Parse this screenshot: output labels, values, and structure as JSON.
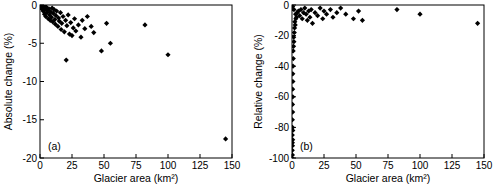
{
  "chart_data": [
    {
      "type": "scatter",
      "x_label": "Glacier area (km²)",
      "y_label": "Absolute change (%)",
      "annotation": "(a)",
      "marker": "diamond",
      "color": "#000000",
      "xlim": [
        0,
        150
      ],
      "xticks": [
        0,
        25,
        50,
        75,
        100,
        125,
        150
      ],
      "ylim": [
        -20,
        0
      ],
      "yticks": [
        0,
        -5,
        -10,
        -15,
        -20
      ],
      "x": [
        0.2,
        0.5,
        0.8,
        1,
        1.2,
        1.5,
        2,
        2.2,
        2.5,
        3,
        3.2,
        3.5,
        4,
        4.2,
        4.5,
        5,
        5.5,
        6,
        6.5,
        7,
        7.5,
        8,
        8.5,
        9,
        9.5,
        10,
        10.5,
        11,
        11.5,
        12,
        12.5,
        13,
        14,
        14.5,
        15,
        16,
        16.5,
        17,
        18,
        19,
        20,
        20.5,
        21,
        22,
        23,
        24,
        25,
        26,
        27,
        28,
        30,
        32,
        33,
        35,
        37,
        40,
        42,
        48,
        52,
        55,
        82,
        100,
        145
      ],
      "values": [
        0,
        -0.1,
        -0.05,
        -0.3,
        -0.15,
        -0.5,
        -0.2,
        -0.05,
        -0.8,
        -0.4,
        -0.1,
        -1.2,
        -0.6,
        -0.2,
        -1.5,
        -0.3,
        -1,
        -0.7,
        -1.8,
        -0.5,
        -1.3,
        -2,
        -0.9,
        -1.6,
        -0.4,
        -2.2,
        -1.1,
        -0.6,
        -1.9,
        -2.5,
        -1.4,
        -0.8,
        -2.8,
        -1.7,
        -2.1,
        -1,
        -3.2,
        -2.4,
        -1.5,
        -3.5,
        -2,
        -7.2,
        -2.7,
        -1.3,
        -3.8,
        -2.3,
        -4,
        -3,
        -1.8,
        -3.4,
        -2.6,
        -4.2,
        -2,
        -3.1,
        -1.5,
        -2.8,
        -3.6,
        -6,
        -2.4,
        -5,
        -2.6,
        -6.5,
        -17.5
      ]
    },
    {
      "type": "scatter",
      "x_label": "Glacier area (km²)",
      "y_label": "Relative change (%)",
      "annotation": "(b)",
      "marker": "diamond",
      "color": "#000000",
      "xlim": [
        0,
        150
      ],
      "xticks": [
        0,
        25,
        50,
        75,
        100,
        125,
        150
      ],
      "ylim": [
        -100,
        0
      ],
      "yticks": [
        0,
        -20,
        -40,
        -60,
        -80,
        -100
      ],
      "x": [
        0.1,
        0.3,
        0.2,
        0.4,
        0.3,
        0.5,
        0.2,
        0.6,
        0.4,
        0.3,
        0.5,
        0.4,
        0.6,
        0.5,
        0.7,
        0.6,
        0.8,
        1,
        0.9,
        1.2,
        1.5,
        1.3,
        1.8,
        2,
        2.5,
        2.2,
        3,
        3.5,
        2.8,
        4,
        1.5,
        0.5,
        5,
        6,
        7,
        8,
        9,
        10,
        11,
        12,
        13,
        14,
        15,
        16,
        18,
        20,
        22,
        24,
        25,
        27,
        30,
        32,
        35,
        38,
        42,
        48,
        52,
        55,
        82,
        100,
        145
      ],
      "values": [
        -100,
        -98,
        -95,
        -92,
        -90,
        -88,
        -85,
        -82,
        -80,
        -75,
        -70,
        -65,
        -60,
        -55,
        -50,
        -45,
        -40,
        -35,
        -30,
        -27,
        -24,
        -21,
        -18,
        -15,
        -13,
        -11,
        -9,
        -8,
        -6,
        -5,
        -3,
        -1,
        -4,
        -7,
        -3,
        -9,
        -5,
        -2,
        -6,
        -10,
        -4,
        -8,
        -3,
        -12,
        -5,
        -7,
        -2,
        -9,
        -4,
        -6,
        -3,
        -8,
        -5,
        -2,
        -6,
        -9,
        -4,
        -10,
        -3,
        -6,
        -12
      ]
    }
  ]
}
